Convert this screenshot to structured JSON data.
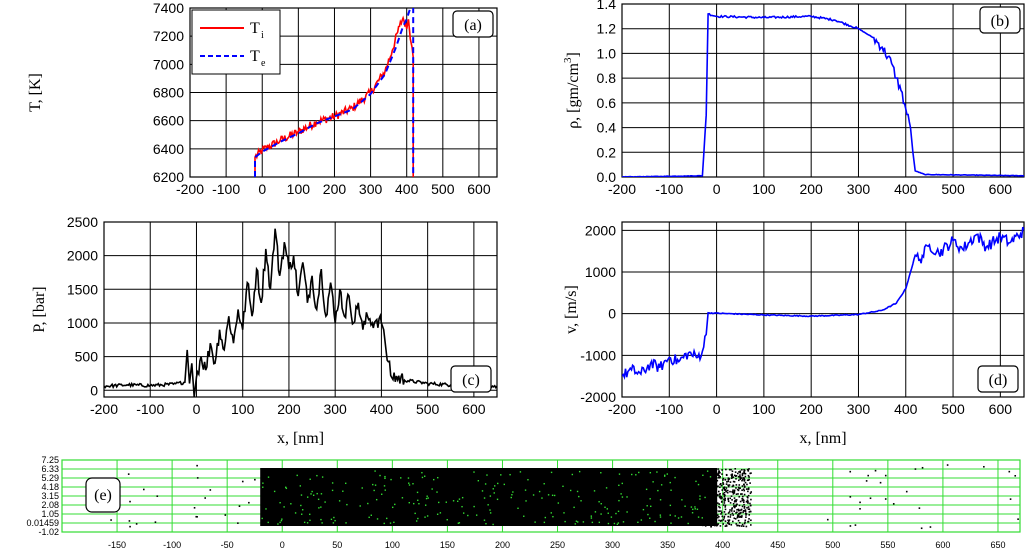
{
  "colors": {
    "red": "#ff0000",
    "blue": "#0000ff",
    "black": "#000000",
    "green": "#33dd33",
    "grid": "#000000"
  },
  "chart_data": [
    {
      "id": "a",
      "type": "line",
      "panel_label": "(a)",
      "ylabel": "T, [K]",
      "xlabel": "",
      "xlim": [
        -200,
        650
      ],
      "ylim": [
        6200,
        7400
      ],
      "xticks": [
        -200,
        -100,
        0,
        100,
        200,
        300,
        400,
        500,
        600
      ],
      "yticks": [
        6200,
        6400,
        6600,
        6800,
        7000,
        7200,
        7400
      ],
      "grid": true,
      "legend_position": "top-left",
      "series": [
        {
          "name": "T",
          "subscript": "i",
          "color": "#ff0000",
          "style": "solid",
          "x": [
            -20,
            -20,
            0,
            50,
            100,
            150,
            200,
            250,
            300,
            340,
            360,
            380,
            390,
            400,
            405,
            410,
            415,
            418,
            418
          ],
          "y": [
            6200,
            6340,
            6390,
            6460,
            6520,
            6590,
            6630,
            6690,
            6800,
            6950,
            7100,
            7270,
            7330,
            7250,
            7320,
            7180,
            7120,
            7050,
            6200
          ]
        },
        {
          "name": "T",
          "subscript": "e",
          "color": "#0000ff",
          "style": "dashed",
          "x": [
            -20,
            -20,
            0,
            50,
            100,
            150,
            200,
            250,
            300,
            340,
            370,
            390,
            400,
            410,
            418,
            418
          ],
          "y": [
            6200,
            6340,
            6380,
            6450,
            6510,
            6580,
            6630,
            6680,
            6790,
            6930,
            7120,
            7270,
            7320,
            7400,
            7400,
            6200
          ]
        }
      ]
    },
    {
      "id": "b",
      "type": "line",
      "panel_label": "(b)",
      "ylabel": "ρ, [gm/cm³]",
      "ylabel_main": "ρ, [gm/cm",
      "ylabel_sup": "3",
      "ylabel_end": "]",
      "xlabel": "",
      "xlim": [
        -200,
        650
      ],
      "ylim": [
        0.0,
        1.4
      ],
      "xticks": [
        -200,
        -100,
        0,
        100,
        200,
        300,
        400,
        500,
        600
      ],
      "yticks": [
        0.0,
        0.2,
        0.4,
        0.6,
        0.8,
        1.0,
        1.2,
        1.4
      ],
      "ytick_labels": [
        "0.0",
        "0.2",
        "0.4",
        "0.6",
        "0.8",
        "1.0",
        "1.2",
        "1.4"
      ],
      "grid": true,
      "series": [
        {
          "color": "#0000ff",
          "x": [
            -200,
            -30,
            -22,
            -18,
            0,
            100,
            200,
            250,
            300,
            330,
            350,
            370,
            380,
            390,
            400,
            410,
            415,
            420,
            440,
            650
          ],
          "y": [
            0.0,
            0.01,
            0.5,
            1.32,
            1.3,
            1.29,
            1.3,
            1.27,
            1.2,
            1.13,
            1.05,
            0.92,
            0.8,
            0.7,
            0.55,
            0.4,
            0.2,
            0.05,
            0.02,
            0.01
          ]
        }
      ]
    },
    {
      "id": "c",
      "type": "line",
      "panel_label": "(c)",
      "ylabel": "P, [bar]",
      "xlabel": "x, [nm]",
      "xlim": [
        -200,
        650
      ],
      "ylim": [
        -100,
        2500
      ],
      "xticks": [
        -200,
        -100,
        0,
        100,
        200,
        300,
        400,
        500,
        600
      ],
      "yticks": [
        0,
        500,
        1000,
        1500,
        2000,
        2500
      ],
      "grid": true,
      "series": [
        {
          "color": "#000000",
          "x": [
            -200,
            -150,
            -100,
            -50,
            -25,
            -20,
            -15,
            -10,
            -5,
            0,
            10,
            20,
            30,
            40,
            50,
            60,
            70,
            80,
            90,
            100,
            110,
            120,
            130,
            140,
            150,
            160,
            170,
            180,
            190,
            200,
            210,
            220,
            230,
            240,
            250,
            260,
            270,
            280,
            290,
            300,
            310,
            320,
            330,
            340,
            350,
            360,
            370,
            380,
            390,
            400,
            405,
            410,
            420,
            450,
            500,
            550,
            600,
            650
          ],
          "y": [
            60,
            80,
            70,
            90,
            120,
            600,
            100,
            400,
            -100,
            200,
            500,
            300,
            700,
            400,
            900,
            600,
            1100,
            700,
            1200,
            900,
            1600,
            1100,
            1800,
            1300,
            2100,
            1500,
            2400,
            1700,
            2200,
            1800,
            2000,
            1400,
            1900,
            1300,
            1700,
            1200,
            1800,
            1100,
            1600,
            1000,
            1500,
            1100,
            1400,
            1000,
            1300,
            900,
            1100,
            1000,
            1050,
            1000,
            900,
            600,
            220,
            150,
            100,
            80,
            70,
            60
          ]
        }
      ]
    },
    {
      "id": "d",
      "type": "line",
      "panel_label": "(d)",
      "ylabel": "v, [m/s]",
      "xlabel": "x, [nm]",
      "xlim": [
        -200,
        650
      ],
      "ylim": [
        -2000,
        2200
      ],
      "xticks": [
        -200,
        -100,
        0,
        100,
        200,
        300,
        400,
        500,
        600
      ],
      "yticks": [
        -2000,
        -1000,
        0,
        1000,
        2000
      ],
      "grid": true,
      "series": [
        {
          "color": "#0000ff",
          "x": [
            -200,
            -180,
            -160,
            -140,
            -120,
            -100,
            -80,
            -60,
            -40,
            -30,
            -22,
            -18,
            0,
            100,
            200,
            300,
            350,
            380,
            400,
            410,
            420,
            430,
            450,
            470,
            500,
            520,
            550,
            570,
            600,
            620,
            650
          ],
          "y": [
            -1500,
            -1350,
            -1450,
            -1200,
            -1300,
            -1050,
            -1150,
            -950,
            -1050,
            -900,
            -500,
            20,
            10,
            -30,
            -60,
            -20,
            80,
            250,
            600,
            1000,
            1400,
            1300,
            1650,
            1450,
            1750,
            1550,
            1900,
            1600,
            1850,
            1700,
            2000
          ]
        }
      ]
    },
    {
      "id": "e",
      "type": "scatter",
      "panel_label": "(e)",
      "xlabel": "",
      "xlim": [
        -200,
        670
      ],
      "ylim": [
        -1.02,
        7.25
      ],
      "xticks": [
        -150,
        -100,
        -50,
        0,
        50,
        100,
        150,
        200,
        250,
        300,
        350,
        400,
        450,
        500,
        550,
        600,
        650
      ],
      "ytick_labels": [
        "7.25",
        "6.33",
        "5.29",
        "4.18",
        "3.15",
        "2.08",
        "1.05",
        "0.01459",
        "-1.02"
      ],
      "grid": true,
      "dense_region_x": [
        -20,
        420
      ],
      "series": [
        {
          "color": "#000000"
        }
      ]
    }
  ]
}
